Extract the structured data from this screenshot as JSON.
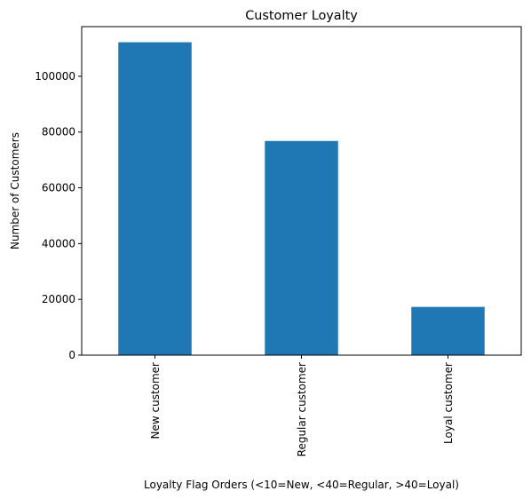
{
  "chart_data": {
    "type": "bar",
    "title": "Customer Loyalty",
    "xlabel": "Loyalty Flag Orders (<10=New, <40=Regular, >40=Loyal)",
    "ylabel": "Number of Customers",
    "categories": [
      "New customer",
      "Regular customer",
      "Loyal customer"
    ],
    "values": [
      112200,
      76800,
      17300
    ],
    "ylim": [
      0,
      117800
    ],
    "yticks": [
      0,
      20000,
      40000,
      60000,
      80000,
      100000
    ],
    "ytick_labels": [
      "0",
      "20000",
      "40000",
      "60000",
      "80000",
      "100000"
    ],
    "bar_color": "#1f77b4",
    "grid": false,
    "legend": false
  }
}
